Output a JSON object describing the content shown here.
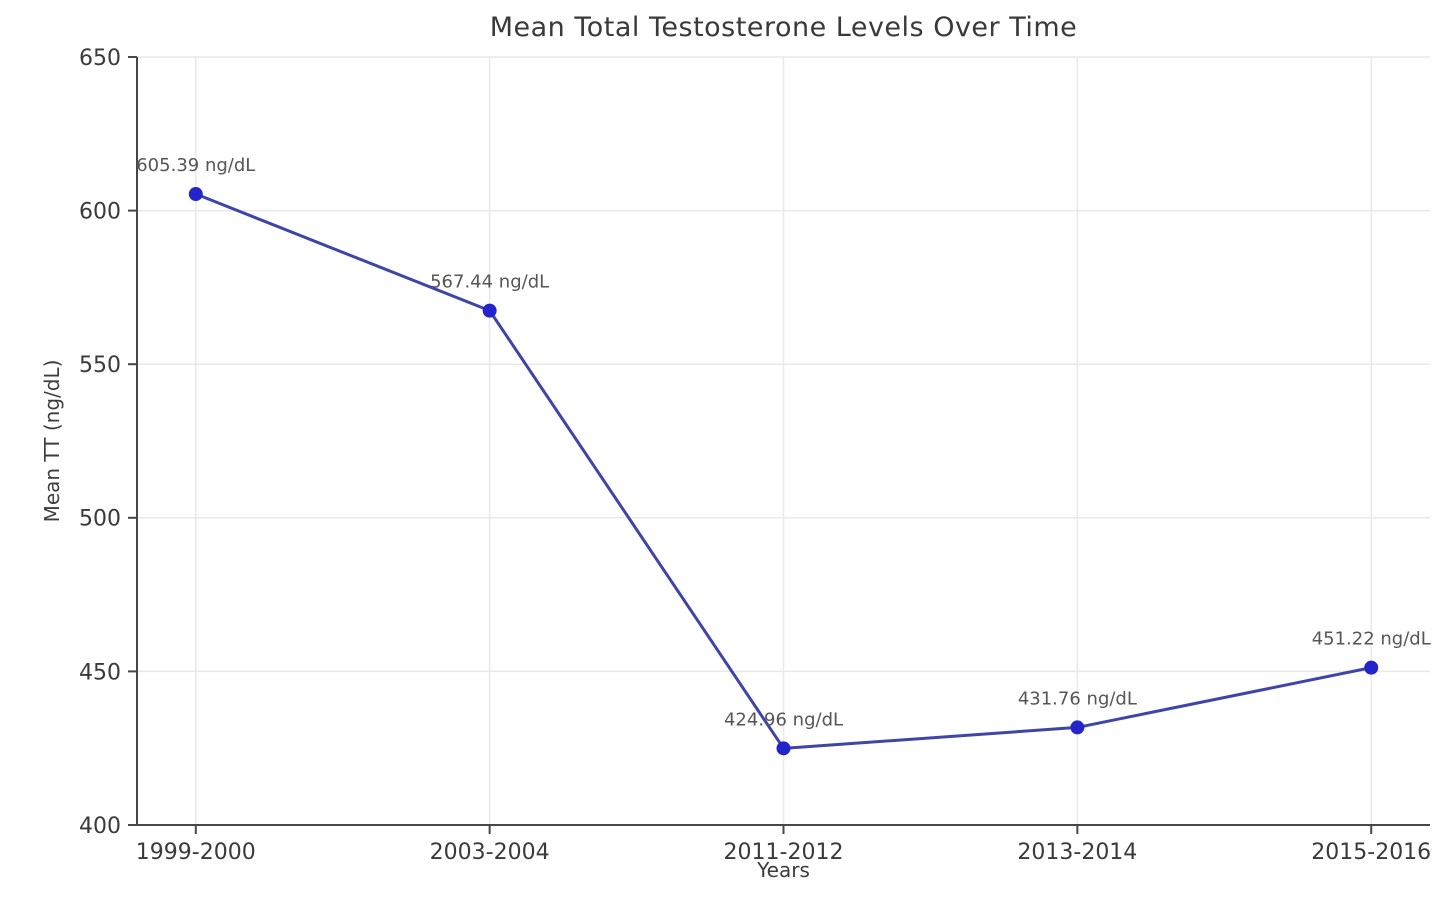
{
  "chart_data": {
    "type": "line",
    "title": "Mean Total Testosterone Levels Over Time",
    "xlabel": "Years",
    "ylabel": "Mean TT (ng/dL)",
    "categories": [
      "1999-2000",
      "2003-2004",
      "2011-2012",
      "2013-2014",
      "2015-2016"
    ],
    "series": [
      {
        "name": "Mean Total Testosterone",
        "values": [
          605.39,
          567.44,
          424.96,
          431.76,
          451.22
        ]
      }
    ],
    "point_labels": [
      "605.39 ng/dL",
      "567.44 ng/dL",
      "424.96 ng/dL",
      "431.76 ng/dL",
      "451.22 ng/dL"
    ],
    "ylim": [
      400,
      650
    ],
    "yticks": [
      400,
      450,
      500,
      550,
      600,
      650
    ],
    "grid": true,
    "legend_position": "none",
    "colors": {
      "line": "#3f44a9",
      "marker": "#2424cc",
      "grid": "#e9e9e9",
      "spine": "#474747",
      "tick_text": "#3a3a3a",
      "title_text": "#3a3a3a",
      "annotation_text": "#565656",
      "background": "#ffffff"
    }
  }
}
